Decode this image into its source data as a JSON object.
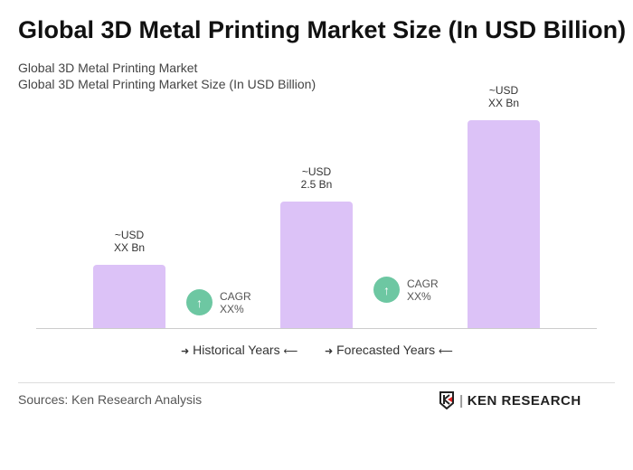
{
  "title": "Global 3D Metal Printing Market Size (In USD Billion)",
  "subtitle1": "Global 3D Metal Printing Market",
  "subtitle2": "Global 3D Metal Printing Market Size (In USD Billion)",
  "chart_data": {
    "type": "bar",
    "categories": [
      "",
      "",
      ""
    ],
    "values": [
      null,
      2.5,
      null
    ],
    "data_labels": [
      [
        "~USD",
        "XX Bn"
      ],
      [
        "~USD",
        "2.5 Bn"
      ],
      [
        "~USD",
        "XX Bn"
      ]
    ],
    "bar_color": "#dcc2f7",
    "cagr": [
      {
        "label": "CAGR",
        "value": "XX%"
      },
      {
        "label": "CAGR",
        "value": "XX%"
      }
    ],
    "cagr_color": "#6dc7a2",
    "legend": [
      "Historical Years",
      "Forecasted Years"
    ]
  },
  "sources": "Sources: Ken Research Analysis",
  "logo": "KEN RESEARCH"
}
